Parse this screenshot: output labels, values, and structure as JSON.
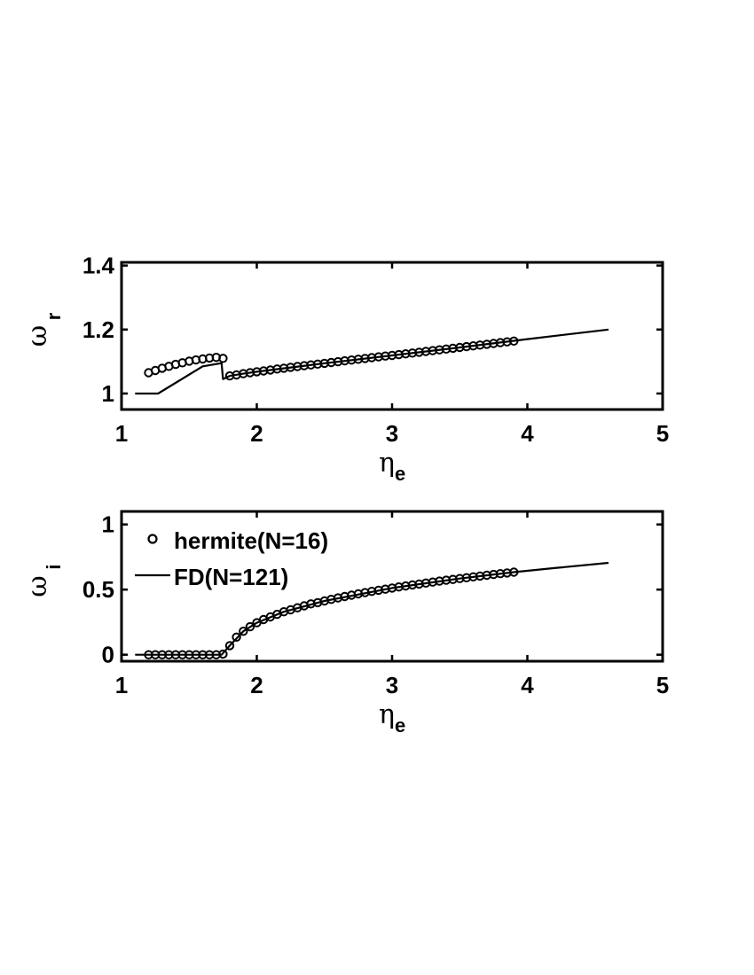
{
  "chart_data": [
    {
      "type": "line",
      "xlabel_symbol": "η",
      "xlabel_subscript": "e",
      "ylabel_symbol": "ω",
      "ylabel_subscript": "r",
      "xlim": [
        1,
        5
      ],
      "ylim": [
        0.95,
        1.41
      ],
      "xticks": [
        1,
        2,
        3,
        4,
        5
      ],
      "xtick_labels": [
        "1",
        "2",
        "3",
        "4",
        "5"
      ],
      "yticks": [
        1,
        1.2,
        1.4
      ],
      "ytick_labels": [
        "1",
        "1.2",
        "1.4"
      ],
      "grid": false,
      "series": [
        {
          "style": "markers-circle",
          "x": [
            1.2,
            1.25,
            1.3,
            1.35,
            1.4,
            1.45,
            1.5,
            1.55,
            1.6,
            1.65,
            1.7,
            1.75,
            1.8,
            1.85,
            1.9,
            1.95,
            2.0,
            2.05,
            2.1,
            2.15,
            2.2,
            2.25,
            2.3,
            2.35,
            2.4,
            2.45,
            2.5,
            2.55,
            2.6,
            2.65,
            2.7,
            2.75,
            2.8,
            2.85,
            2.9,
            2.95,
            3.0,
            3.05,
            3.1,
            3.15,
            3.2,
            3.25,
            3.3,
            3.35,
            3.4,
            3.45,
            3.5,
            3.55,
            3.6,
            3.65,
            3.7,
            3.75,
            3.8,
            3.85,
            3.9
          ],
          "y": [
            1.065,
            1.072,
            1.079,
            1.085,
            1.091,
            1.096,
            1.101,
            1.105,
            1.108,
            1.111,
            1.113,
            1.11,
            1.055,
            1.058,
            1.062,
            1.065,
            1.068,
            1.0705,
            1.0735,
            1.0765,
            1.079,
            1.082,
            1.0845,
            1.087,
            1.0895,
            1.092,
            1.0945,
            1.097,
            1.0995,
            1.102,
            1.1045,
            1.107,
            1.1095,
            1.112,
            1.1145,
            1.117,
            1.119,
            1.1215,
            1.124,
            1.1265,
            1.129,
            1.1315,
            1.134,
            1.1365,
            1.139,
            1.1415,
            1.144,
            1.1465,
            1.149,
            1.1515,
            1.154,
            1.1565,
            1.159,
            1.1615,
            1.164
          ]
        },
        {
          "style": "line-solid",
          "x": [
            1.1,
            1.27,
            1.6,
            1.74,
            1.75,
            1.8,
            1.9,
            2.0,
            2.5,
            3.0,
            3.5,
            4.0,
            4.6
          ],
          "y": [
            1.0,
            1.0,
            1.085,
            1.095,
            1.045,
            1.055,
            1.062,
            1.068,
            1.0945,
            1.119,
            1.144,
            1.17,
            1.2
          ]
        }
      ]
    },
    {
      "type": "line",
      "xlabel_symbol": "η",
      "xlabel_subscript": "e",
      "ylabel_symbol": "ω",
      "ylabel_subscript": "i",
      "xlim": [
        1,
        5
      ],
      "ylim": [
        -0.05,
        1.1
      ],
      "xticks": [
        1,
        2,
        3,
        4,
        5
      ],
      "xtick_labels": [
        "1",
        "2",
        "3",
        "4",
        "5"
      ],
      "yticks": [
        0,
        0.5,
        1
      ],
      "ytick_labels": [
        "0",
        "0.5",
        "1"
      ],
      "grid": false,
      "legend_position": "top-left",
      "series": [
        {
          "name": "hermite(N=16)",
          "style": "markers-circle",
          "x": [
            1.2,
            1.25,
            1.3,
            1.35,
            1.4,
            1.45,
            1.5,
            1.55,
            1.6,
            1.65,
            1.7,
            1.75,
            1.8,
            1.85,
            1.9,
            1.95,
            2.0,
            2.05,
            2.1,
            2.15,
            2.2,
            2.25,
            2.3,
            2.35,
            2.4,
            2.45,
            2.5,
            2.55,
            2.6,
            2.65,
            2.7,
            2.75,
            2.8,
            2.85,
            2.9,
            2.95,
            3.0,
            3.05,
            3.1,
            3.15,
            3.2,
            3.25,
            3.3,
            3.35,
            3.4,
            3.45,
            3.5,
            3.55,
            3.6,
            3.65,
            3.7,
            3.75,
            3.8,
            3.85,
            3.9
          ],
          "y": [
            0,
            0,
            0,
            0,
            0,
            0,
            0,
            0,
            0,
            0,
            0,
            0.005,
            0.07,
            0.135,
            0.18,
            0.215,
            0.245,
            0.27,
            0.29,
            0.31,
            0.33,
            0.345,
            0.36,
            0.375,
            0.39,
            0.4,
            0.413,
            0.425,
            0.436,
            0.447,
            0.457,
            0.467,
            0.477,
            0.486,
            0.495,
            0.503,
            0.512,
            0.52,
            0.528,
            0.536,
            0.543,
            0.55,
            0.558,
            0.565,
            0.572,
            0.578,
            0.585,
            0.591,
            0.598,
            0.604,
            0.61,
            0.616,
            0.622,
            0.628,
            0.634
          ]
        },
        {
          "name": "FD(N=121)",
          "style": "line-solid",
          "x": [
            1.1,
            1.74,
            1.8,
            1.9,
            2.0,
            2.2,
            2.5,
            3.0,
            3.5,
            3.9,
            4.2,
            4.6
          ],
          "y": [
            0,
            0,
            0.07,
            0.18,
            0.245,
            0.33,
            0.413,
            0.512,
            0.585,
            0.634,
            0.665,
            0.705
          ]
        }
      ]
    }
  ]
}
